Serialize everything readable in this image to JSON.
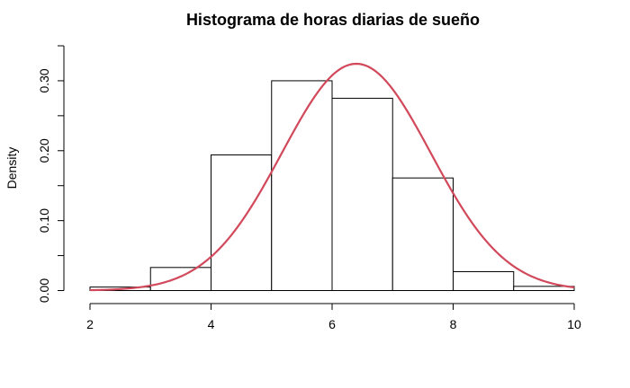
{
  "chart_data": {
    "type": "bar",
    "title": "Histograma de horas diarias de sueño",
    "xlabel": "",
    "ylabel": "Density",
    "bins": [
      {
        "x0": 2,
        "x1": 3,
        "density": 0.005
      },
      {
        "x0": 3,
        "x1": 4,
        "density": 0.033
      },
      {
        "x0": 4,
        "x1": 5,
        "density": 0.194
      },
      {
        "x0": 5,
        "x1": 6,
        "density": 0.3
      },
      {
        "x0": 6,
        "x1": 7,
        "density": 0.275
      },
      {
        "x0": 7,
        "x1": 8,
        "density": 0.161
      },
      {
        "x0": 8,
        "x1": 9,
        "density": 0.027
      },
      {
        "x0": 9,
        "x1": 10,
        "density": 0.006
      }
    ],
    "series": [
      {
        "type": "normal-density-curve",
        "mean": 6.4,
        "sd": 1.23,
        "color": "#d1495b"
      }
    ],
    "xlim": [
      2,
      10
    ],
    "ylim": [
      0,
      0.35
    ],
    "xticks": [
      "2",
      "4",
      "6",
      "8",
      "10"
    ],
    "yticks": [
      "0.00",
      "0.10",
      "0.20",
      "0.30"
    ],
    "grid": false,
    "legend": "none"
  }
}
